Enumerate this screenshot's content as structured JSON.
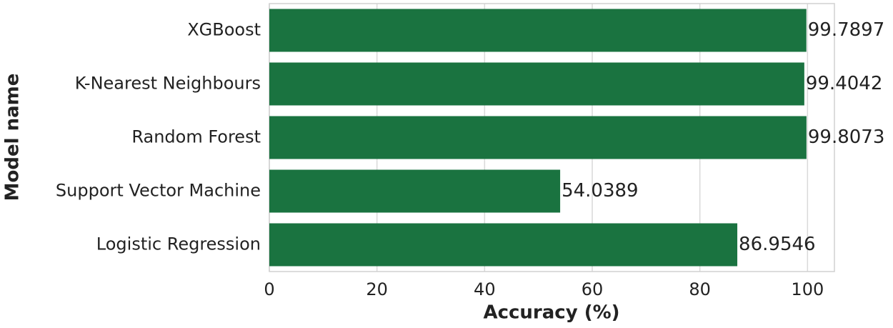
{
  "chart_data": {
    "type": "barh",
    "xlabel": "Accuracy (%)",
    "ylabel": "Model name",
    "categories": [
      "XGBoost",
      "K-Nearest Neighbours",
      "Random Forest",
      "Support Vector Machine",
      "Logistic Regression"
    ],
    "values": [
      99.7897,
      99.4042,
      99.8073,
      54.0389,
      86.9546
    ],
    "color": "#1a7340",
    "xlim": [
      0,
      105
    ],
    "xticks": [
      0,
      20,
      40,
      60,
      80,
      100
    ],
    "grid": true
  }
}
